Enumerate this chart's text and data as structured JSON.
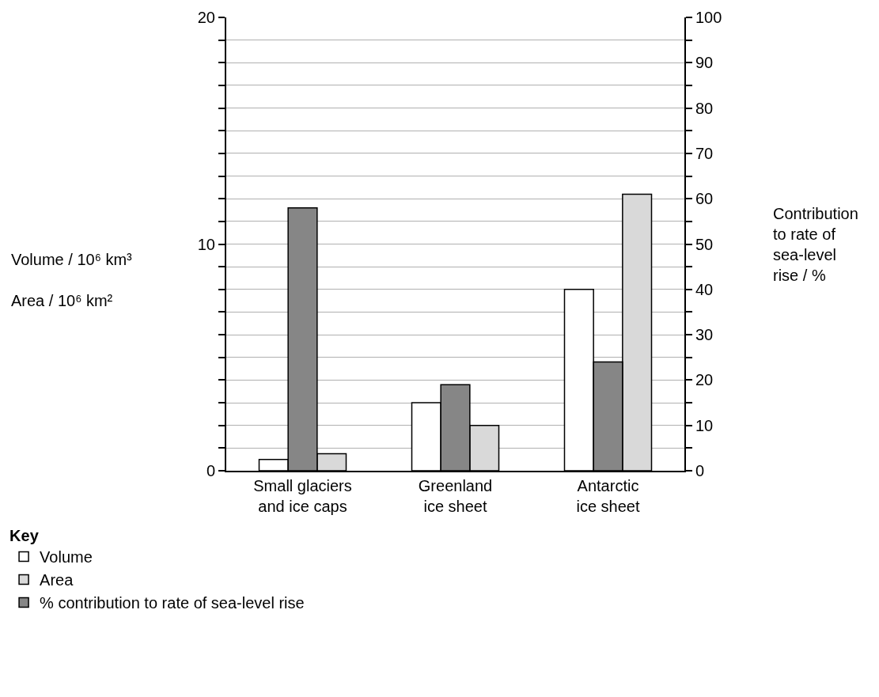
{
  "chart_data": {
    "type": "bar",
    "categories": [
      "Small glaciers and ice caps",
      "Greenland ice sheet",
      "Antarctic ice sheet"
    ],
    "series": [
      {
        "name": "Volume",
        "color": "#ffffff",
        "values": [
          0.5,
          3,
          8
        ]
      },
      {
        "name": "% contribution to rate of sea-level rise",
        "color": "#868686",
        "values": [
          58,
          19,
          24
        ],
        "axis": "y2"
      },
      {
        "name": "Area",
        "color": "#d9d9d9",
        "values": [
          0.75,
          2,
          12.2
        ]
      }
    ],
    "ylabel": "Volume / 10⁶ km³\nArea / 10⁶ km²",
    "y2label": "Contribution to rate of sea-level rise / %",
    "legend_title": "Key",
    "legend": "bottom left",
    "ylim": [
      0,
      20
    ],
    "yticks": [
      0,
      {
        "value": 1,
        "label": null
      },
      {
        "value": 2,
        "label": null
      },
      {
        "value": 3,
        "label": null
      },
      {
        "value": 4,
        "label": null
      },
      {
        "value": 5,
        "label": null
      },
      {
        "value": 6,
        "label": null
      },
      {
        "value": 7,
        "label": null
      },
      {
        "value": 8,
        "label": null
      },
      {
        "value": 9,
        "label": null
      },
      10,
      {
        "value": 11,
        "label": null
      },
      {
        "value": 12,
        "label": null
      },
      {
        "value": 13,
        "label": null
      },
      {
        "value": 14,
        "label": null
      },
      {
        "value": 15,
        "label": null
      },
      {
        "value": 16,
        "label": null
      },
      {
        "value": 17,
        "label": null
      },
      {
        "value": 18,
        "label": null
      },
      {
        "value": 19,
        "label": null
      },
      20
    ],
    "y2lim": [
      0,
      100
    ],
    "y2ticks": [
      0,
      {
        "value": 5,
        "label": null
      },
      10,
      {
        "value": 15,
        "label": null
      },
      20,
      {
        "value": 25,
        "label": null
      },
      30,
      {
        "value": 35,
        "label": null
      },
      40,
      {
        "value": 45,
        "label": null
      },
      50,
      {
        "value": 55,
        "label": null
      },
      60,
      {
        "value": 65,
        "label": null
      },
      70,
      {
        "value": 75,
        "label": null
      },
      80,
      {
        "value": 85,
        "label": null
      },
      90,
      {
        "value": 95,
        "label": null
      },
      100
    ],
    "grid": "y"
  }
}
